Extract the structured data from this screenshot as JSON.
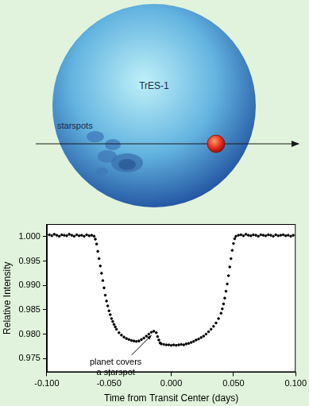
{
  "illustration": {
    "star_label": "TrES-1",
    "spots_label": "starspots"
  },
  "chart_data": {
    "type": "scatter",
    "x_label": "Time from Transit Center (days)",
    "y_label": "Relative Intensity",
    "marker": "circle",
    "color": "#000000",
    "grid": false,
    "xlim": [
      -0.1,
      0.1
    ],
    "xticks": [
      {
        "value": -0.1,
        "label": "-0.100"
      },
      {
        "value": -0.05,
        "label": "-0.050"
      },
      {
        "value": 0,
        "label": "0.000"
      },
      {
        "value": 0.05,
        "label": "0.050"
      },
      {
        "value": 0.1,
        "label": "0.100"
      }
    ],
    "ylim": [
      0.9722,
      1.0026
    ],
    "yticks": [
      0.975,
      {
        "value": 0.98,
        "label": "0.980"
      },
      0.985,
      {
        "value": 0.99,
        "label": "0.990"
      },
      0.995,
      {
        "value": 1,
        "label": "1.000"
      }
    ],
    "annotation": {
      "text": [
        "planet covers",
        "a starspot"
      ],
      "x": -0.014,
      "y": 0.9806
    },
    "x": [
      -0.098,
      -0.096,
      -0.094,
      -0.092,
      -0.09,
      -0.088,
      -0.086,
      -0.084,
      -0.082,
      -0.08,
      -0.078,
      -0.076,
      -0.074,
      -0.072,
      -0.07,
      -0.068,
      -0.066,
      -0.064,
      -0.062,
      -0.061,
      -0.06,
      -0.059,
      -0.058,
      -0.057,
      -0.056,
      -0.055,
      -0.054,
      -0.053,
      -0.052,
      -0.051,
      -0.05,
      -0.049,
      -0.048,
      -0.047,
      -0.046,
      -0.045,
      -0.044,
      -0.042,
      -0.04,
      -0.038,
      -0.036,
      -0.034,
      -0.032,
      -0.03,
      -0.028,
      -0.026,
      -0.024,
      -0.022,
      -0.02,
      -0.018,
      -0.016,
      -0.014,
      -0.012,
      -0.011,
      -0.01,
      -0.009,
      -0.008,
      -0.006,
      -0.004,
      -0.002,
      0,
      0.002,
      0.004,
      0.006,
      0.008,
      0.01,
      0.012,
      0.014,
      0.016,
      0.018,
      0.02,
      0.022,
      0.024,
      0.026,
      0.028,
      0.03,
      0.032,
      0.034,
      0.036,
      0.038,
      0.04,
      0.041,
      0.042,
      0.043,
      0.044,
      0.045,
      0.046,
      0.047,
      0.048,
      0.049,
      0.05,
      0.051,
      0.052,
      0.054,
      0.056,
      0.058,
      0.06,
      0.062,
      0.064,
      0.066,
      0.068,
      0.07,
      0.072,
      0.074,
      0.076,
      0.078,
      0.08,
      0.082,
      0.084,
      0.086,
      0.088,
      0.09,
      0.092,
      0.094,
      0.096,
      0.098
    ],
    "values": [
      1.0004,
      1.0002,
      1.0005,
      1.0003,
      1.0001,
      1.0004,
      1.0003,
      1.0002,
      1.0005,
      1.0003,
      1.0001,
      1.0004,
      1.0002,
      1.0003,
      1.0001,
      1.0004,
      1.0002,
      1.0003,
      1.0001,
      0.9995,
      0.9985,
      0.997,
      0.9955,
      0.994,
      0.9925,
      0.991,
      0.9895,
      0.988,
      0.9868,
      0.9858,
      0.9848,
      0.984,
      0.9832,
      0.9826,
      0.982,
      0.9815,
      0.981,
      0.9803,
      0.9798,
      0.9794,
      0.9791,
      0.9789,
      0.9787,
      0.9786,
      0.9785,
      0.9786,
      0.9789,
      0.9792,
      0.9796,
      0.98,
      0.9804,
      0.9806,
      0.9803,
      0.9795,
      0.9788,
      0.9782,
      0.978,
      0.9779,
      0.9778,
      0.9778,
      0.9777,
      0.9778,
      0.9777,
      0.9778,
      0.9779,
      0.9778,
      0.978,
      0.9781,
      0.9783,
      0.9785,
      0.9788,
      0.979,
      0.9793,
      0.9796,
      0.98,
      0.9805,
      0.981,
      0.9816,
      0.9823,
      0.9832,
      0.9843,
      0.9852,
      0.9862,
      0.9874,
      0.9888,
      0.9903,
      0.992,
      0.9938,
      0.9955,
      0.9972,
      0.9986,
      0.9996,
      1.0001,
      1.0003,
      1.0004,
      1.0002,
      1.0005,
      1.0003,
      1.0002,
      1.0004,
      1.0003,
      1.0001,
      1.0004,
      1.0003,
      1.0002,
      1.0004,
      1.0003,
      1.0001,
      1.0004,
      1.0002,
      1.0003,
      1.0004,
      1.0002,
      1.0003,
      1.0001,
      1.0003
    ]
  }
}
